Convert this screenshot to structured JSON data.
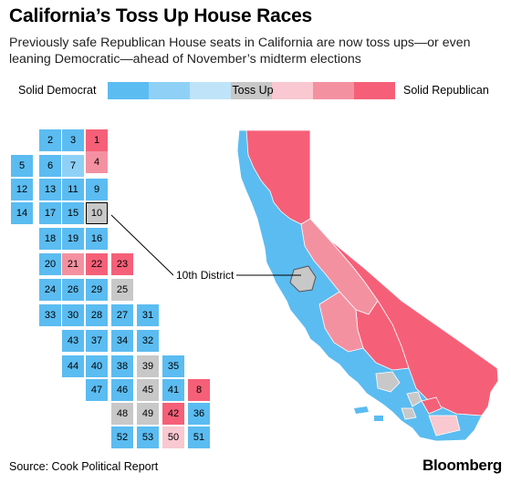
{
  "title": "California’s Toss Up House Races",
  "subtitle": "Previously safe Republican House seats in California are now toss ups—or even leaning Democratic—ahead of November’s midterm elections",
  "legend": {
    "left_label": "Solid Democrat",
    "center_label": "Toss Up",
    "right_label": "Solid Republican",
    "scale": [
      {
        "rating": "Solid Democrat",
        "color": "#5bbcf1"
      },
      {
        "rating": "Likely Democrat",
        "color": "#8fd1f6"
      },
      {
        "rating": "Lean Democrat",
        "color": "#bfe3f8"
      },
      {
        "rating": "Toss Up",
        "color": "#c8c8c8"
      },
      {
        "rating": "Lean Republican",
        "color": "#f9c8d0"
      },
      {
        "rating": "Likely Republican",
        "color": "#f491a1"
      },
      {
        "rating": "Solid Republican",
        "color": "#f56078"
      }
    ]
  },
  "districts": [
    {
      "number": "1",
      "rating": "Solid Republican"
    },
    {
      "number": "2",
      "rating": "Solid Democrat"
    },
    {
      "number": "3",
      "rating": "Solid Democrat"
    },
    {
      "number": "4",
      "rating": "Likely Republican"
    },
    {
      "number": "5",
      "rating": "Solid Democrat"
    },
    {
      "number": "6",
      "rating": "Solid Democrat"
    },
    {
      "number": "7",
      "rating": "Likely Democrat"
    },
    {
      "number": "8",
      "rating": "Solid Republican"
    },
    {
      "number": "9",
      "rating": "Solid Democrat"
    },
    {
      "number": "10",
      "rating": "Toss Up"
    },
    {
      "number": "11",
      "rating": "Solid Democrat"
    },
    {
      "number": "12",
      "rating": "Solid Democrat"
    },
    {
      "number": "13",
      "rating": "Solid Democrat"
    },
    {
      "number": "14",
      "rating": "Solid Democrat"
    },
    {
      "number": "15",
      "rating": "Solid Democrat"
    },
    {
      "number": "16",
      "rating": "Solid Democrat"
    },
    {
      "number": "17",
      "rating": "Solid Democrat"
    },
    {
      "number": "18",
      "rating": "Solid Democrat"
    },
    {
      "number": "19",
      "rating": "Solid Democrat"
    },
    {
      "number": "20",
      "rating": "Solid Democrat"
    },
    {
      "number": "21",
      "rating": "Likely Republican"
    },
    {
      "number": "22",
      "rating": "Solid Republican"
    },
    {
      "number": "23",
      "rating": "Solid Republican"
    },
    {
      "number": "24",
      "rating": "Solid Democrat"
    },
    {
      "number": "25",
      "rating": "Toss Up"
    },
    {
      "number": "26",
      "rating": "Solid Democrat"
    },
    {
      "number": "27",
      "rating": "Solid Democrat"
    },
    {
      "number": "28",
      "rating": "Solid Democrat"
    },
    {
      "number": "29",
      "rating": "Solid Democrat"
    },
    {
      "number": "30",
      "rating": "Solid Democrat"
    },
    {
      "number": "31",
      "rating": "Solid Democrat"
    },
    {
      "number": "32",
      "rating": "Solid Democrat"
    },
    {
      "number": "33",
      "rating": "Solid Democrat"
    },
    {
      "number": "34",
      "rating": "Solid Democrat"
    },
    {
      "number": "35",
      "rating": "Solid Democrat"
    },
    {
      "number": "36",
      "rating": "Solid Democrat"
    },
    {
      "number": "37",
      "rating": "Solid Democrat"
    },
    {
      "number": "38",
      "rating": "Solid Democrat"
    },
    {
      "number": "39",
      "rating": "Toss Up"
    },
    {
      "number": "40",
      "rating": "Solid Democrat"
    },
    {
      "number": "41",
      "rating": "Solid Democrat"
    },
    {
      "number": "42",
      "rating": "Solid Republican"
    },
    {
      "number": "43",
      "rating": "Solid Democrat"
    },
    {
      "number": "44",
      "rating": "Solid Democrat"
    },
    {
      "number": "45",
      "rating": "Toss Up"
    },
    {
      "number": "46",
      "rating": "Solid Democrat"
    },
    {
      "number": "47",
      "rating": "Solid Democrat"
    },
    {
      "number": "48",
      "rating": "Toss Up"
    },
    {
      "number": "49",
      "rating": "Toss Up"
    },
    {
      "number": "50",
      "rating": "Lean Republican"
    },
    {
      "number": "51",
      "rating": "Solid Democrat"
    },
    {
      "number": "52",
      "rating": "Solid Democrat"
    },
    {
      "number": "53",
      "rating": "Solid Democrat"
    }
  ],
  "highlight": {
    "district": "10",
    "label": "10th District"
  },
  "source": "Source: Cook Political Report",
  "brand": "Bloomberg"
}
